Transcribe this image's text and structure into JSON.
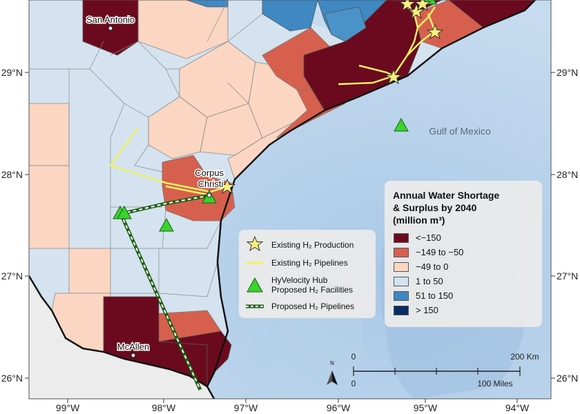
{
  "map": {
    "gulf_label": "Gulf of Mexico",
    "cities": [
      {
        "name": "San Antonio"
      },
      {
        "name": "Corpus\nChristi"
      },
      {
        "name": "McAllen"
      }
    ],
    "lon_ticks": [
      "99°W",
      "98°W",
      "97°W",
      "96°W",
      "95°W",
      "94°W"
    ],
    "lat_ticks": [
      "29°N",
      "28°N",
      "27°N",
      "26°N"
    ]
  },
  "legend_classes": {
    "title": "Annual Water Shortage\n& Surplus by 2040\n(million m³)",
    "items": [
      {
        "label": "<−150",
        "color": "#6b0a1e"
      },
      {
        "label": "−149 to −50",
        "color": "#d6604d"
      },
      {
        "label": "−49 to 0",
        "color": "#fbd6c3"
      },
      {
        "label": "1 to 50",
        "color": "#d4e3ef"
      },
      {
        "label": "51 to 150",
        "color": "#3f88c2"
      },
      {
        "label": "> 150",
        "color": "#082c63"
      }
    ]
  },
  "legend_symbols": {
    "items": [
      {
        "label": "Existing H₂ Production",
        "icon": "star-icon"
      },
      {
        "label": "Existing H₂ Pipelines",
        "icon": "yellow-line-icon"
      },
      {
        "label": "HyVelocity Hub\nProposed H₂ Facilities",
        "icon": "triangle-icon"
      },
      {
        "label": "Proposed H₂ Pipelines",
        "icon": "dashed-line-icon"
      }
    ]
  },
  "scale_bar": {
    "km_start": "0",
    "km_end": "200 Km",
    "mi_start": "0",
    "mi_end": "100 Miles",
    "north_label": "N"
  }
}
